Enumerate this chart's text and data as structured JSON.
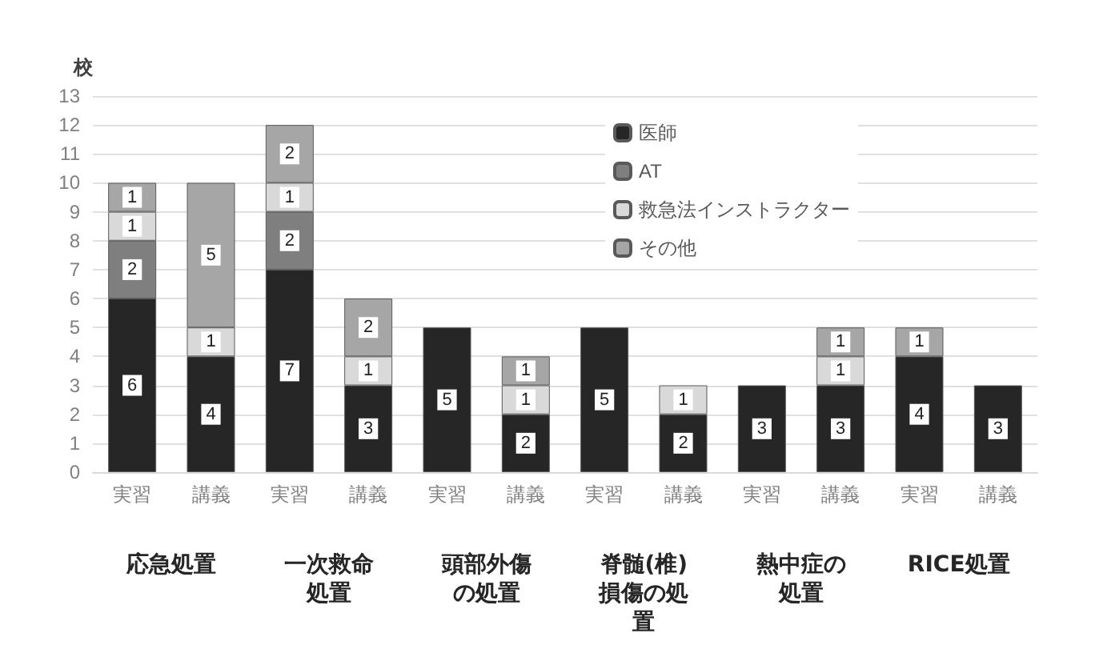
{
  "chart_data": {
    "type": "bar",
    "stacked": true,
    "ylabel": "校",
    "categories": [
      "実習",
      "講義",
      "実習",
      "講義",
      "実習",
      "講義",
      "実習",
      "講義",
      "実習",
      "講義",
      "実習",
      "講義"
    ],
    "series": [
      {
        "name": "医師",
        "color": "#262626",
        "values": [
          6,
          4,
          7,
          3,
          5,
          2,
          5,
          2,
          3,
          3,
          4,
          3
        ]
      },
      {
        "name": "AT",
        "color": "#7f7f7f",
        "values": [
          2,
          null,
          2,
          null,
          null,
          null,
          null,
          null,
          null,
          null,
          null,
          null
        ]
      },
      {
        "name": "救急法インストラクター",
        "color": "#d9d9d9",
        "values": [
          1,
          1,
          1,
          1,
          null,
          1,
          null,
          1,
          null,
          1,
          null,
          null
        ]
      },
      {
        "name": "その他",
        "color": "#a6a6a6",
        "values": [
          1,
          5,
          2,
          2,
          null,
          1,
          null,
          null,
          null,
          1,
          1,
          null
        ]
      }
    ],
    "ylim": [
      0,
      13
    ],
    "yticks": [
      0,
      1,
      2,
      3,
      4,
      5,
      6,
      7,
      8,
      9,
      10,
      11,
      12,
      13
    ],
    "grid": "y",
    "legend": "top right",
    "data_labels": true,
    "annotations": [
      "応急処置",
      "一次救命処置",
      "頭部外傷の処置",
      "脊髄(椎)損傷の処置",
      "熱中症の処置",
      "RICE処置"
    ]
  }
}
